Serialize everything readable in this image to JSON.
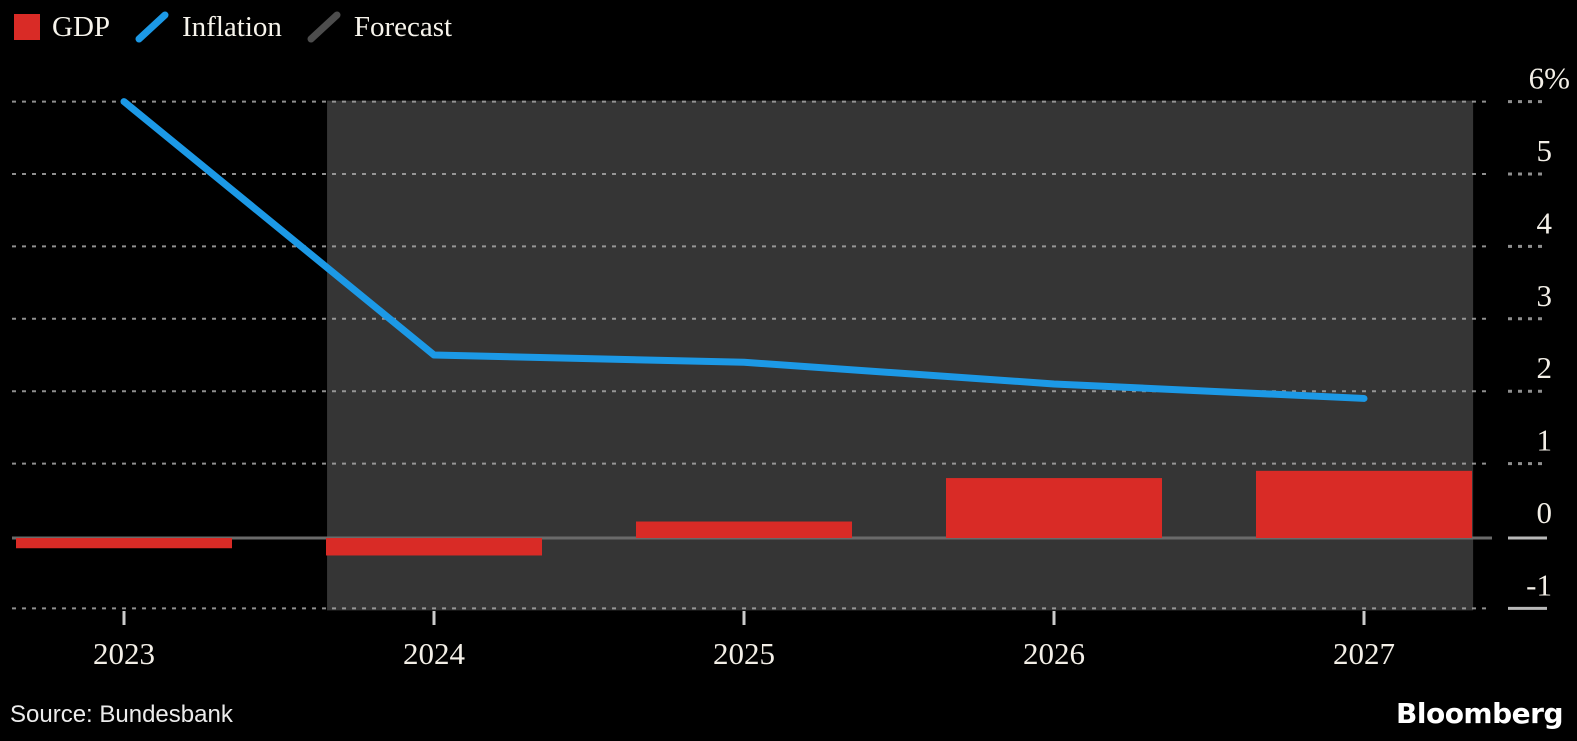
{
  "legend": [
    {
      "label": "GDP",
      "swatch": "square",
      "color": "#d92b26"
    },
    {
      "label": "Inflation",
      "swatch": "diagonal-line",
      "color": "#1c99e6"
    },
    {
      "label": "Forecast",
      "swatch": "diagonal-line",
      "color": "#4d4d4d"
    }
  ],
  "footer": {
    "source": "Source: Bundesbank",
    "brand": "Bloomberg"
  },
  "colors": {
    "background": "#000000",
    "forecast_band": "#353535",
    "gdp_red": "#d92b26",
    "inflation_blue": "#1c99e6",
    "grid_dotted": "#a8a8a8",
    "zero_line": "#6a6a6a",
    "axis_tick": "#cccccc",
    "axis_text": "#f3efe7"
  },
  "chart_data": {
    "type": "combo",
    "categories": [
      2023,
      2024,
      2025,
      2026,
      2027
    ],
    "series": [
      {
        "name": "GDP",
        "type": "bar",
        "color": "#d92b26",
        "values": [
          -0.1,
          -0.2,
          0.2,
          0.8,
          0.9
        ]
      },
      {
        "name": "Inflation",
        "type": "line",
        "color": "#1c99e6",
        "values": [
          6.0,
          2.5,
          2.4,
          2.1,
          1.9
        ]
      }
    ],
    "forecast_region": {
      "name": "Forecast",
      "from": 2023.655,
      "to": 2027.352,
      "color": "#353535"
    },
    "y_axis": {
      "position": "right",
      "unit": "%",
      "min": -1,
      "max": 6,
      "ticks": [
        6,
        5,
        4,
        3,
        2,
        1,
        0,
        -1
      ],
      "tick_labels": [
        "6%",
        "5",
        "4",
        "3",
        "2",
        "1",
        "0",
        "-1"
      ]
    },
    "x_axis": {
      "tick_labels": [
        "2023",
        "2024",
        "2025",
        "2026",
        "2027"
      ]
    },
    "grid": "horizontal dotted, solid zero line",
    "legend_position": "top-left",
    "title": ""
  }
}
